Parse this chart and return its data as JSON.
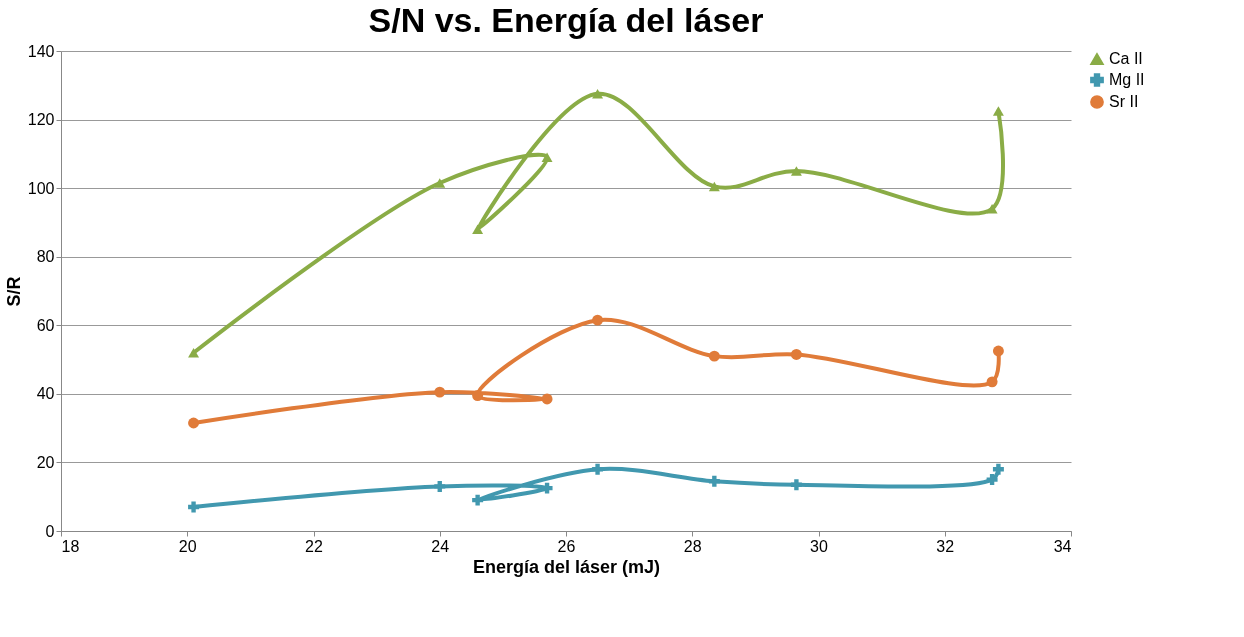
{
  "chart_data": {
    "type": "line",
    "title": "S/N vs. Energía del láser",
    "xlabel": "Energía del láser (mJ)",
    "ylabel": "S/R",
    "x": [
      20.1,
      24.0,
      25.7,
      24.6,
      26.5,
      28.35,
      29.65,
      32.75,
      32.85
    ],
    "series": [
      {
        "name": "Ca II",
        "color": "#8aac46",
        "marker": "triangle",
        "values": [
          52,
          101.5,
          109,
          88,
          127.5,
          100.5,
          105,
          94,
          122.5
        ]
      },
      {
        "name": "Mg II",
        "color": "#4198af",
        "marker": "cross",
        "values": [
          7,
          13,
          12.5,
          9,
          18,
          14.5,
          13.5,
          15,
          18
        ]
      },
      {
        "name": "Sr II",
        "color": "#e07b39",
        "marker": "circle",
        "values": [
          31.5,
          40.5,
          38.5,
          39.5,
          61.5,
          51,
          51.5,
          43.5,
          52.5
        ]
      }
    ],
    "xlim": [
      18,
      34
    ],
    "xticks": [
      18,
      20,
      22,
      24,
      26,
      28,
      30,
      32,
      34
    ],
    "ylim": [
      0,
      140
    ],
    "yticks": [
      0,
      20,
      40,
      60,
      80,
      100,
      120,
      140
    ],
    "grid": "y",
    "legend": "right",
    "line_style": "solid"
  }
}
